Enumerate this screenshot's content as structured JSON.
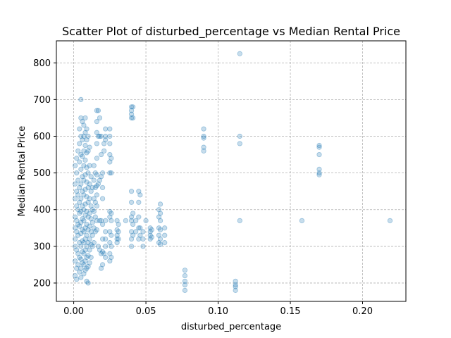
{
  "chart_data": {
    "type": "scatter",
    "title": "Scatter Plot of disturbed_percentage vs Median Rental Price",
    "xlabel": "disturbed_percentage",
    "ylabel": "Median Rental Price",
    "xlim": [
      -0.012,
      0.23
    ],
    "ylim": [
      150,
      860
    ],
    "xticks": [
      0.0,
      0.05,
      0.1,
      0.15,
      0.2
    ],
    "xtick_labels": [
      "0.00",
      "0.05",
      "0.10",
      "0.15",
      "0.20"
    ],
    "yticks": [
      200,
      300,
      400,
      500,
      600,
      700,
      800
    ],
    "ytick_labels": [
      "200",
      "300",
      "400",
      "500",
      "600",
      "700",
      "800"
    ],
    "grid": true,
    "marker_color": "#1f77b4",
    "marker_alpha": 0.25,
    "series": [
      {
        "points": [
          [
            0.001,
            520
          ],
          [
            0.001,
            470
          ],
          [
            0.001,
            430
          ],
          [
            0.001,
            380
          ],
          [
            0.001,
            350
          ],
          [
            0.001,
            320
          ],
          [
            0.001,
            300
          ],
          [
            0.001,
            260
          ],
          [
            0.001,
            220
          ],
          [
            0.002,
            540
          ],
          [
            0.002,
            500
          ],
          [
            0.002,
            450
          ],
          [
            0.002,
            410
          ],
          [
            0.002,
            370
          ],
          [
            0.002,
            340
          ],
          [
            0.002,
            290
          ],
          [
            0.002,
            240
          ],
          [
            0.002,
            210
          ],
          [
            0.003,
            560
          ],
          [
            0.003,
            480
          ],
          [
            0.003,
            440
          ],
          [
            0.003,
            400
          ],
          [
            0.003,
            360
          ],
          [
            0.003,
            330
          ],
          [
            0.003,
            280
          ],
          [
            0.003,
            250
          ],
          [
            0.004,
            620
          ],
          [
            0.004,
            580
          ],
          [
            0.004,
            530
          ],
          [
            0.004,
            460
          ],
          [
            0.004,
            420
          ],
          [
            0.004,
            390
          ],
          [
            0.004,
            355
          ],
          [
            0.004,
            310
          ],
          [
            0.004,
            270
          ],
          [
            0.004,
            230
          ],
          [
            0.005,
            700
          ],
          [
            0.005,
            650
          ],
          [
            0.005,
            600
          ],
          [
            0.005,
            550
          ],
          [
            0.005,
            510
          ],
          [
            0.005,
            470
          ],
          [
            0.005,
            430
          ],
          [
            0.005,
            395
          ],
          [
            0.005,
            365
          ],
          [
            0.005,
            335
          ],
          [
            0.005,
            300
          ],
          [
            0.005,
            265
          ],
          [
            0.005,
            240
          ],
          [
            0.005,
            215
          ],
          [
            0.006,
            640
          ],
          [
            0.006,
            590
          ],
          [
            0.006,
            545
          ],
          [
            0.006,
            490
          ],
          [
            0.006,
            450
          ],
          [
            0.006,
            410
          ],
          [
            0.006,
            375
          ],
          [
            0.006,
            345
          ],
          [
            0.006,
            315
          ],
          [
            0.006,
            285
          ],
          [
            0.006,
            255
          ],
          [
            0.007,
            630
          ],
          [
            0.007,
            600
          ],
          [
            0.007,
            560
          ],
          [
            0.007,
            520
          ],
          [
            0.007,
            480
          ],
          [
            0.007,
            440
          ],
          [
            0.007,
            400
          ],
          [
            0.007,
            370
          ],
          [
            0.007,
            340
          ],
          [
            0.007,
            310
          ],
          [
            0.007,
            280
          ],
          [
            0.007,
            250
          ],
          [
            0.007,
            225
          ],
          [
            0.008,
            650
          ],
          [
            0.008,
            610
          ],
          [
            0.008,
            575
          ],
          [
            0.008,
            535
          ],
          [
            0.008,
            495
          ],
          [
            0.008,
            455
          ],
          [
            0.008,
            415
          ],
          [
            0.008,
            385
          ],
          [
            0.008,
            350
          ],
          [
            0.008,
            320
          ],
          [
            0.008,
            290
          ],
          [
            0.008,
            260
          ],
          [
            0.008,
            235
          ],
          [
            0.009,
            620
          ],
          [
            0.009,
            590
          ],
          [
            0.009,
            555
          ],
          [
            0.009,
            515
          ],
          [
            0.009,
            475
          ],
          [
            0.009,
            435
          ],
          [
            0.009,
            395
          ],
          [
            0.009,
            360
          ],
          [
            0.009,
            330
          ],
          [
            0.009,
            300
          ],
          [
            0.009,
            270
          ],
          [
            0.009,
            240
          ],
          [
            0.009,
            205
          ],
          [
            0.01,
            600
          ],
          [
            0.01,
            560
          ],
          [
            0.01,
            500
          ],
          [
            0.01,
            460
          ],
          [
            0.01,
            420
          ],
          [
            0.01,
            380
          ],
          [
            0.01,
            345
          ],
          [
            0.01,
            310
          ],
          [
            0.01,
            275
          ],
          [
            0.01,
            245
          ],
          [
            0.01,
            200
          ],
          [
            0.011,
            570
          ],
          [
            0.011,
            520
          ],
          [
            0.011,
            470
          ],
          [
            0.011,
            430
          ],
          [
            0.011,
            390
          ],
          [
            0.011,
            355
          ],
          [
            0.011,
            320
          ],
          [
            0.011,
            290
          ],
          [
            0.011,
            255
          ],
          [
            0.012,
            490
          ],
          [
            0.012,
            450
          ],
          [
            0.012,
            410
          ],
          [
            0.012,
            375
          ],
          [
            0.012,
            340
          ],
          [
            0.012,
            305
          ],
          [
            0.012,
            270
          ],
          [
            0.013,
            460
          ],
          [
            0.013,
            400
          ],
          [
            0.013,
            365
          ],
          [
            0.013,
            330
          ],
          [
            0.013,
            300
          ],
          [
            0.014,
            520
          ],
          [
            0.014,
            480
          ],
          [
            0.014,
            430
          ],
          [
            0.014,
            395
          ],
          [
            0.014,
            350
          ],
          [
            0.014,
            310
          ],
          [
            0.015,
            500
          ],
          [
            0.015,
            460
          ],
          [
            0.015,
            420
          ],
          [
            0.015,
            380
          ],
          [
            0.015,
            340
          ],
          [
            0.016,
            670
          ],
          [
            0.016,
            640
          ],
          [
            0.016,
            610
          ],
          [
            0.016,
            580
          ],
          [
            0.016,
            540
          ],
          [
            0.016,
            495
          ],
          [
            0.016,
            465
          ],
          [
            0.016,
            440
          ],
          [
            0.016,
            410
          ],
          [
            0.016,
            370
          ],
          [
            0.016,
            345
          ],
          [
            0.017,
            670
          ],
          [
            0.017,
            600
          ],
          [
            0.017,
            470
          ],
          [
            0.017,
            300
          ],
          [
            0.018,
            650
          ],
          [
            0.018,
            600
          ],
          [
            0.018,
            480
          ],
          [
            0.018,
            370
          ],
          [
            0.018,
            290
          ],
          [
            0.019,
            600
          ],
          [
            0.019,
            550
          ],
          [
            0.019,
            490
          ],
          [
            0.019,
            370
          ],
          [
            0.019,
            280
          ],
          [
            0.019,
            240
          ],
          [
            0.02,
            500
          ],
          [
            0.02,
            460
          ],
          [
            0.02,
            430
          ],
          [
            0.02,
            360
          ],
          [
            0.02,
            320
          ],
          [
            0.02,
            285
          ],
          [
            0.02,
            250
          ],
          [
            0.021,
            580
          ],
          [
            0.021,
            560
          ],
          [
            0.021,
            280
          ],
          [
            0.022,
            620
          ],
          [
            0.022,
            600
          ],
          [
            0.022,
            590
          ],
          [
            0.022,
            370
          ],
          [
            0.022,
            340
          ],
          [
            0.022,
            320
          ],
          [
            0.022,
            300
          ],
          [
            0.022,
            270
          ],
          [
            0.025,
            620
          ],
          [
            0.025,
            600
          ],
          [
            0.025,
            580
          ],
          [
            0.025,
            550
          ],
          [
            0.025,
            530
          ],
          [
            0.025,
            500
          ],
          [
            0.025,
            395
          ],
          [
            0.025,
            380
          ],
          [
            0.025,
            340
          ],
          [
            0.025,
            310
          ],
          [
            0.025,
            280
          ],
          [
            0.025,
            260
          ],
          [
            0.026,
            540
          ],
          [
            0.026,
            500
          ],
          [
            0.026,
            390
          ],
          [
            0.026,
            370
          ],
          [
            0.026,
            330
          ],
          [
            0.026,
            300
          ],
          [
            0.026,
            270
          ],
          [
            0.03,
            370
          ],
          [
            0.03,
            345
          ],
          [
            0.03,
            330
          ],
          [
            0.03,
            320
          ],
          [
            0.03,
            310
          ],
          [
            0.031,
            360
          ],
          [
            0.031,
            340
          ],
          [
            0.031,
            320
          ],
          [
            0.036,
            370
          ],
          [
            0.04,
            680
          ],
          [
            0.04,
            670
          ],
          [
            0.04,
            660
          ],
          [
            0.04,
            650
          ],
          [
            0.04,
            450
          ],
          [
            0.04,
            420
          ],
          [
            0.04,
            380
          ],
          [
            0.04,
            370
          ],
          [
            0.04,
            340
          ],
          [
            0.04,
            320
          ],
          [
            0.04,
            300
          ],
          [
            0.041,
            680
          ],
          [
            0.041,
            650
          ],
          [
            0.041,
            390
          ],
          [
            0.041,
            360
          ],
          [
            0.041,
            330
          ],
          [
            0.043,
            370
          ],
          [
            0.043,
            340
          ],
          [
            0.045,
            450
          ],
          [
            0.045,
            420
          ],
          [
            0.045,
            380
          ],
          [
            0.045,
            350
          ],
          [
            0.045,
            320
          ],
          [
            0.046,
            440
          ],
          [
            0.046,
            350
          ],
          [
            0.046,
            330
          ],
          [
            0.048,
            340
          ],
          [
            0.048,
            320
          ],
          [
            0.048,
            300
          ],
          [
            0.05,
            370
          ],
          [
            0.053,
            350
          ],
          [
            0.053,
            340
          ],
          [
            0.053,
            330
          ],
          [
            0.053,
            320
          ],
          [
            0.054,
            345
          ],
          [
            0.054,
            325
          ],
          [
            0.059,
            400
          ],
          [
            0.059,
            380
          ],
          [
            0.059,
            350
          ],
          [
            0.059,
            330
          ],
          [
            0.059,
            310
          ],
          [
            0.06,
            415
          ],
          [
            0.06,
            390
          ],
          [
            0.06,
            370
          ],
          [
            0.06,
            345
          ],
          [
            0.06,
            320
          ],
          [
            0.06,
            305
          ],
          [
            0.063,
            350
          ],
          [
            0.063,
            330
          ],
          [
            0.063,
            310
          ],
          [
            0.077,
            235
          ],
          [
            0.077,
            220
          ],
          [
            0.077,
            205
          ],
          [
            0.077,
            195
          ],
          [
            0.077,
            180
          ],
          [
            0.09,
            620
          ],
          [
            0.09,
            600
          ],
          [
            0.09,
            595
          ],
          [
            0.09,
            570
          ],
          [
            0.09,
            560
          ],
          [
            0.112,
            205
          ],
          [
            0.112,
            195
          ],
          [
            0.112,
            190
          ],
          [
            0.112,
            180
          ],
          [
            0.115,
            825
          ],
          [
            0.115,
            600
          ],
          [
            0.115,
            580
          ],
          [
            0.115,
            370
          ],
          [
            0.158,
            370
          ],
          [
            0.17,
            575
          ],
          [
            0.17,
            570
          ],
          [
            0.17,
            550
          ],
          [
            0.17,
            510
          ],
          [
            0.17,
            500
          ],
          [
            0.17,
            495
          ],
          [
            0.219,
            370
          ]
        ]
      }
    ]
  }
}
